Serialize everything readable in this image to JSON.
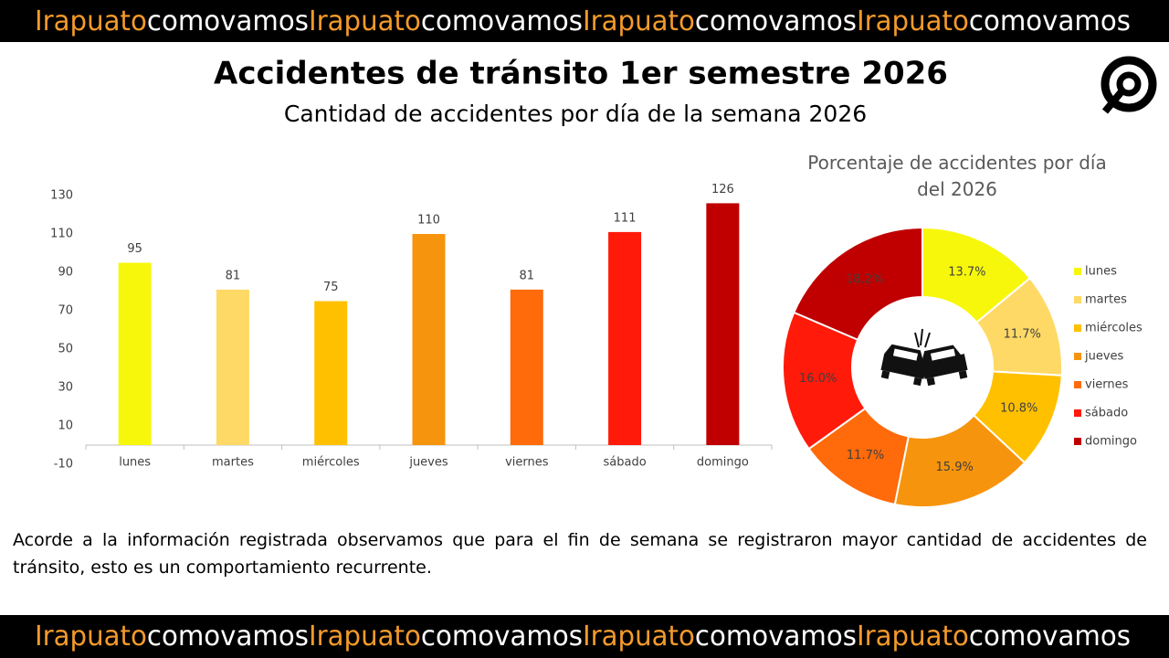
{
  "banner_top": [
    "Irapuato",
    "comovamos",
    "Irapuato",
    "comovamos",
    "Irapuato",
    "comovamos",
    "Irapuato",
    "comovamos"
  ],
  "banner_bottom": [
    "Irapuato",
    "comovamos",
    "Irapuato",
    "comovamos",
    "Irapuato",
    "comovamos",
    "Irapuato",
    "comovamos"
  ],
  "banner_colors": [
    "#f39a2b",
    "#ffffff"
  ],
  "title": "Accidentes de tránsito 1er semestre 2026",
  "subtitle": "Cantidad de accidentes por día de la semana 2026",
  "chart_data": [
    {
      "type": "bar",
      "categories": [
        "lunes",
        "martes",
        "miércoles",
        "jueves",
        "viernes",
        "sábado",
        "domingo"
      ],
      "values": [
        95,
        81,
        75,
        110,
        81,
        111,
        126
      ],
      "colors": [
        "#f7f70c",
        "#ffd966",
        "#ffc000",
        "#f7940d",
        "#ff6a0a",
        "#ff1a0a",
        "#c00000"
      ],
      "ylim": [
        -10,
        130
      ],
      "yticks": [
        -10,
        10,
        30,
        50,
        70,
        90,
        110,
        130
      ],
      "grid": false
    },
    {
      "type": "donut",
      "title": "Porcentaje de accidentes por día del 2026",
      "categories": [
        "lunes",
        "martes",
        "miércoles",
        "jueves",
        "viernes",
        "sábado",
        "domingo"
      ],
      "values": [
        13.7,
        11.7,
        10.8,
        15.9,
        11.7,
        16.0,
        18.2
      ],
      "value_labels": [
        "13.7%",
        "11.7%",
        "10.8%",
        "15.9%",
        "11.7%",
        "16.0%",
        "18.2%"
      ],
      "colors": [
        "#f7f70c",
        "#ffd966",
        "#ffc000",
        "#f7940d",
        "#ff6a0a",
        "#ff1a0a",
        "#c00000"
      ],
      "legend": "right"
    }
  ],
  "paragraph": "Acorde a la información registrada observamos que para el fin de semana se registraron mayor cantidad de accidentes de tránsito, esto es un comportamiento recurrente."
}
